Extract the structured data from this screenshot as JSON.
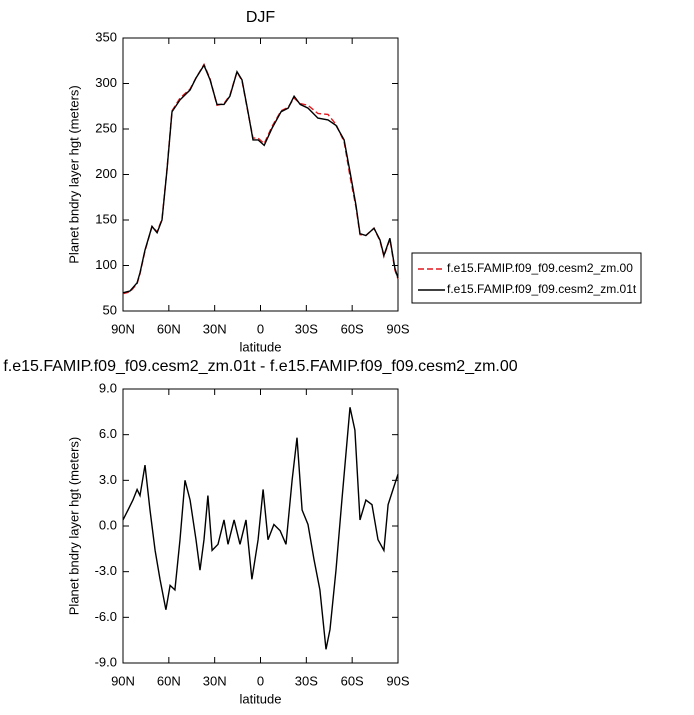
{
  "chart_data": [
    {
      "type": "line",
      "title": "DJF",
      "xlabel": "latitude",
      "ylabel": "Planet bndry layer hgt (meters)",
      "x": [
        90,
        85.4,
        80.8,
        78.9,
        75.6,
        71,
        67.7,
        64.5,
        61.2,
        57.9,
        52.7,
        46.1,
        42.2,
        37,
        33,
        28.5,
        23.9,
        20,
        15.4,
        12.1,
        8.2,
        4.9,
        1.6,
        -2.4,
        -7.6,
        -13.5,
        -18.1,
        -22,
        -26,
        -31.1,
        -37.6,
        -44.2,
        -49.4,
        -54.7,
        -58.6,
        -62.5,
        -65.1,
        -69,
        -74.3,
        -78.2,
        -80.8,
        -84.7,
        -88,
        -90
      ],
      "xlim": [
        90,
        -90
      ],
      "xticks": [
        {
          "value": 90,
          "label": "90N"
        },
        {
          "value": 60,
          "label": "60N"
        },
        {
          "value": 30,
          "label": "30N"
        },
        0,
        {
          "value": -30,
          "label": "30S"
        },
        {
          "value": -60,
          "label": "60S"
        },
        {
          "value": -90,
          "label": "90S"
        }
      ],
      "ylim": [
        50,
        350
      ],
      "yticks": [
        50,
        100,
        150,
        200,
        250,
        300,
        350
      ],
      "legend": "outside-right",
      "series": [
        {
          "name": "f.e15.FAMIP.f09_f09.cesm2_zm.00",
          "color": "#e0191e",
          "dashed": true,
          "values": [
            69,
            71,
            80,
            91,
            116,
            143,
            137,
            151,
            206,
            270,
            284,
            294,
            306,
            321,
            305,
            276,
            278,
            287,
            313,
            303,
            268,
            240,
            240,
            234,
            253,
            270,
            274,
            284,
            278,
            276,
            267,
            266,
            255,
            236,
            198,
            164,
            134,
            133,
            141,
            127,
            110,
            129,
            95,
            85
          ]
        },
        {
          "name": "f.e15.FAMIP.f09_f09.cesm2_zm.01t",
          "color": "#000000",
          "dashed": false,
          "values": [
            70,
            72,
            81,
            92,
            117,
            143,
            136,
            150,
            205,
            269,
            282,
            293,
            306,
            320,
            304,
            277,
            277,
            286,
            313,
            304,
            269,
            238,
            238,
            232,
            251,
            269,
            273,
            286,
            277,
            273,
            262,
            260,
            254,
            238,
            203,
            166,
            135,
            133,
            141,
            128,
            111,
            130,
            97,
            86
          ]
        }
      ]
    },
    {
      "type": "line",
      "title": "f.e15.FAMIP.f09_f09.cesm2_zm.01t - f.e15.FAMIP.f09_f09.cesm2_zm.00",
      "xlabel": "latitude",
      "ylabel": "Planet bndry layer hgt (meters)",
      "x": [
        90,
        86.7,
        83.5,
        80.8,
        78.9,
        75.6,
        72.3,
        69,
        65.8,
        61.9,
        59.2,
        56,
        52.7,
        49.4,
        46.1,
        42.2,
        39.6,
        37,
        34.4,
        31.7,
        27.8,
        23.9,
        21.3,
        17.3,
        13.4,
        9.5,
        5.6,
        1.6,
        -1.7,
        -4.9,
        -8.8,
        -12.8,
        -16.7,
        -20.7,
        -23.9,
        -27.2,
        -31.1,
        -35,
        -38.9,
        -42.9,
        -45.5,
        -49.4,
        -53.3,
        -58.6,
        -61.8,
        -65.1,
        -69,
        -73,
        -76.9,
        -80.8,
        -83.5,
        -86.7,
        -90
      ],
      "values": [
        0.4,
        1.05,
        1.7,
        2.4,
        2.0,
        4.0,
        1.05,
        -1.6,
        -3.5,
        -5.5,
        -3.9,
        -4.2,
        -0.9,
        3.0,
        1.7,
        -0.9,
        -2.9,
        -0.9,
        2.0,
        -1.6,
        -1.2,
        0.4,
        -1.2,
        0.4,
        -1.2,
        0.4,
        -3.5,
        -0.9,
        2.4,
        -0.9,
        0.1,
        -0.3,
        -1.2,
        3.0,
        5.8,
        1.05,
        0.1,
        -2.2,
        -4.2,
        -8.1,
        -6.8,
        -2.9,
        1.7,
        7.8,
        6.3,
        0.4,
        1.7,
        1.4,
        -0.9,
        -1.6,
        1.4,
        2.4,
        3.4
      ],
      "color": "#000000",
      "xlim": [
        90,
        -90
      ],
      "xticks": [
        {
          "value": 90,
          "label": "90N"
        },
        {
          "value": 60,
          "label": "60N"
        },
        {
          "value": 30,
          "label": "30N"
        },
        0,
        {
          "value": -30,
          "label": "30S"
        },
        {
          "value": -60,
          "label": "60S"
        },
        {
          "value": -90,
          "label": "90S"
        }
      ],
      "ylim": [
        -9,
        9
      ],
      "yticks": [
        {
          "value": -9,
          "label": "-9.0"
        },
        {
          "value": -6,
          "label": "-6.0"
        },
        {
          "value": -3,
          "label": "-3.0"
        },
        {
          "value": 0,
          "label": "0.0"
        },
        {
          "value": 3,
          "label": "3.0"
        },
        {
          "value": 6,
          "label": "6.0"
        },
        {
          "value": 9,
          "label": "9.0"
        }
      ]
    }
  ]
}
